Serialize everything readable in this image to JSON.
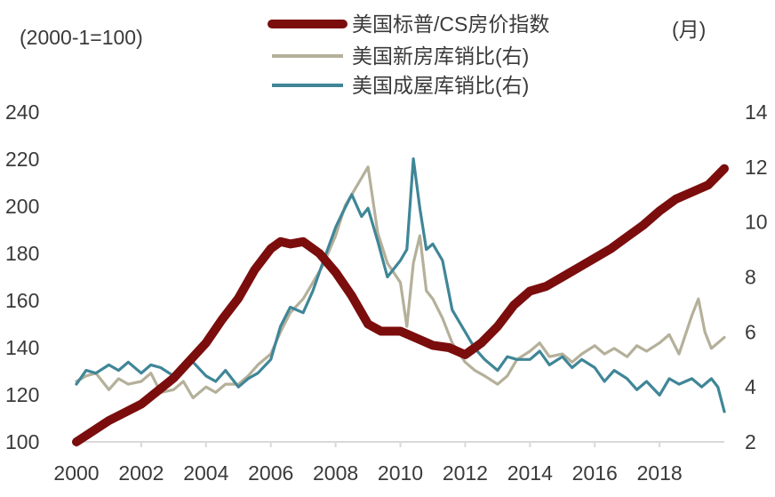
{
  "chart_data": {
    "type": "line",
    "left_axis_unit": "(2000-1=100)",
    "right_axis_unit": "(月)",
    "x_ticks": [
      "2000",
      "2002",
      "2004",
      "2006",
      "2008",
      "2010",
      "2012",
      "2014",
      "2016",
      "2018"
    ],
    "y_left": {
      "min": 100,
      "max": 240,
      "ticks": [
        100,
        120,
        140,
        160,
        180,
        200,
        220,
        240
      ]
    },
    "y_right": {
      "min": 2,
      "max": 14,
      "ticks": [
        2,
        4,
        6,
        8,
        10,
        12,
        14
      ]
    },
    "grid": false,
    "legend_position": "top-center",
    "series": [
      {
        "name": "美国标普/CS房价指数",
        "axis": "left",
        "color": "#7b0d0d",
        "x": [
          2000.0,
          2001.0,
          2002.0,
          2003.0,
          2004.0,
          2004.5,
          2005.0,
          2005.5,
          2006.0,
          2006.3,
          2006.6,
          2007.0,
          2007.5,
          2008.0,
          2008.5,
          2009.0,
          2009.4,
          2010.0,
          2010.5,
          2011.0,
          2011.5,
          2012.0,
          2012.5,
          2013.0,
          2013.5,
          2014.0,
          2014.5,
          2015.0,
          2015.5,
          2016.0,
          2016.5,
          2017.0,
          2017.5,
          2018.0,
          2018.5,
          2019.0,
          2019.5,
          2020.0
        ],
        "values": [
          100,
          109,
          116,
          127,
          142,
          152,
          161,
          173,
          182,
          185,
          184,
          185,
          180,
          172,
          162,
          150,
          147,
          147,
          144,
          141,
          140,
          137,
          142,
          149,
          158,
          164,
          166,
          170,
          174,
          178,
          182,
          187,
          192,
          198,
          203,
          206,
          209,
          216
        ]
      },
      {
        "name": "美国新房库销比(右)",
        "axis": "right",
        "color": "#b5b09a",
        "x": [
          2000.0,
          2000.3,
          2000.6,
          2001.0,
          2001.3,
          2001.6,
          2002.0,
          2002.3,
          2002.6,
          2003.0,
          2003.3,
          2003.6,
          2004.0,
          2004.3,
          2004.6,
          2005.0,
          2005.3,
          2005.6,
          2006.0,
          2006.3,
          2006.6,
          2007.0,
          2007.3,
          2007.6,
          2008.0,
          2008.3,
          2008.6,
          2009.0,
          2009.3,
          2009.6,
          2010.0,
          2010.2,
          2010.4,
          2010.6,
          2010.8,
          2011.0,
          2011.3,
          2011.6,
          2012.0,
          2012.3,
          2012.6,
          2013.0,
          2013.3,
          2013.6,
          2014.0,
          2014.3,
          2014.6,
          2015.0,
          2015.3,
          2015.6,
          2016.0,
          2016.3,
          2016.6,
          2017.0,
          2017.3,
          2017.6,
          2018.0,
          2018.3,
          2018.6,
          2019.0,
          2019.2,
          2019.4,
          2019.6,
          2020.0
        ],
        "values": [
          4.2,
          4.4,
          4.5,
          3.9,
          4.3,
          4.1,
          4.2,
          4.5,
          3.8,
          3.9,
          4.2,
          3.6,
          4.0,
          3.8,
          4.1,
          4.1,
          4.4,
          4.8,
          5.2,
          6.0,
          6.7,
          7.2,
          7.8,
          8.4,
          9.5,
          10.6,
          11.2,
          12.0,
          9.6,
          8.5,
          7.8,
          6.2,
          8.5,
          9.5,
          7.5,
          7.2,
          6.5,
          5.6,
          4.9,
          4.6,
          4.4,
          4.1,
          4.4,
          5.0,
          5.3,
          5.6,
          5.1,
          5.2,
          4.9,
          5.2,
          5.5,
          5.2,
          5.4,
          5.1,
          5.5,
          5.3,
          5.6,
          5.9,
          5.2,
          6.6,
          7.2,
          6.0,
          5.4,
          5.8
        ]
      },
      {
        "name": "美国成屋库销比(右)",
        "axis": "right",
        "color": "#3f8697",
        "x": [
          2000.0,
          2000.3,
          2000.6,
          2001.0,
          2001.3,
          2001.6,
          2002.0,
          2002.3,
          2002.6,
          2003.0,
          2003.3,
          2003.6,
          2004.0,
          2004.3,
          2004.6,
          2005.0,
          2005.3,
          2005.6,
          2006.0,
          2006.3,
          2006.6,
          2007.0,
          2007.3,
          2007.6,
          2008.0,
          2008.2,
          2008.5,
          2008.8,
          2009.0,
          2009.3,
          2009.6,
          2010.0,
          2010.2,
          2010.4,
          2010.6,
          2010.8,
          2011.0,
          2011.3,
          2011.6,
          2012.0,
          2012.3,
          2012.6,
          2013.0,
          2013.3,
          2013.6,
          2014.0,
          2014.3,
          2014.6,
          2015.0,
          2015.3,
          2015.6,
          2016.0,
          2016.3,
          2016.6,
          2017.0,
          2017.3,
          2017.6,
          2018.0,
          2018.3,
          2018.6,
          2019.0,
          2019.3,
          2019.6,
          2019.8,
          2020.0
        ],
        "values": [
          4.1,
          4.6,
          4.5,
          4.8,
          4.6,
          4.9,
          4.5,
          4.8,
          4.7,
          4.4,
          4.7,
          4.9,
          4.4,
          4.2,
          4.6,
          4.0,
          4.3,
          4.5,
          5.0,
          6.2,
          6.9,
          6.7,
          7.5,
          8.5,
          9.8,
          10.3,
          11.0,
          10.2,
          10.5,
          9.3,
          8.0,
          8.6,
          9.0,
          12.3,
          10.5,
          9.0,
          9.2,
          8.6,
          6.8,
          6.0,
          5.4,
          5.0,
          4.6,
          5.1,
          5.0,
          5.0,
          5.3,
          4.8,
          5.1,
          4.7,
          5.0,
          4.7,
          4.2,
          4.6,
          4.3,
          3.9,
          4.2,
          3.7,
          4.3,
          4.1,
          4.3,
          4.0,
          4.3,
          4.0,
          3.1
        ]
      }
    ]
  }
}
